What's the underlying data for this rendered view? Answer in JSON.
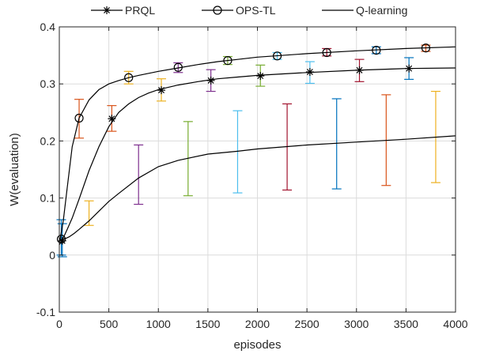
{
  "chart_data": {
    "type": "line",
    "xlabel": "episodes",
    "ylabel": "W(evaluation)",
    "xlim": [
      0,
      4000
    ],
    "ylim": [
      -0.1,
      0.4
    ],
    "xticks": [
      0,
      500,
      1000,
      1500,
      2000,
      2500,
      3000,
      3500,
      4000
    ],
    "yticks": [
      -0.1,
      0,
      0.1,
      0.2,
      0.3,
      0.4
    ],
    "xtick_labels": [
      "0",
      "500",
      "1000",
      "1500",
      "2000",
      "2500",
      "3000",
      "3500",
      "4000"
    ],
    "ytick_labels": [
      "-0.1",
      "0",
      "0.1",
      "0.2",
      "0.3",
      "0.4"
    ],
    "grid": true,
    "legend_position": "top",
    "series": [
      {
        "name": "PRQL",
        "marker": "asterisk",
        "color": "#000000",
        "curve": {
          "x": [
            0,
            40,
            80,
            130,
            200,
            300,
            400,
            500,
            600,
            700,
            800,
            900,
            1000,
            1200,
            1400,
            1600,
            1800,
            2000,
            2500,
            3000,
            3500,
            4000
          ],
          "y": [
            0.018,
            0.03,
            0.045,
            0.065,
            0.098,
            0.148,
            0.19,
            0.225,
            0.25,
            0.265,
            0.276,
            0.284,
            0.29,
            0.298,
            0.304,
            0.309,
            0.312,
            0.315,
            0.32,
            0.324,
            0.327,
            0.328
          ]
        },
        "markers": {
          "x": [
            30,
            530,
            1030,
            1530,
            2030,
            2530,
            3030,
            3530
          ],
          "y": [
            0.025,
            0.239,
            0.289,
            0.306,
            0.314,
            0.321,
            0.324,
            0.327
          ]
        },
        "errorbars": [
          {
            "x": 30,
            "low": -0.003,
            "high": 0.055,
            "color": "#0072BD"
          },
          {
            "x": 530,
            "low": 0.217,
            "high": 0.262,
            "color": "#D95319"
          },
          {
            "x": 1030,
            "low": 0.27,
            "high": 0.309,
            "color": "#EDB120"
          },
          {
            "x": 1530,
            "low": 0.287,
            "high": 0.325,
            "color": "#7E2F8E"
          },
          {
            "x": 2030,
            "low": 0.296,
            "high": 0.333,
            "color": "#77AC30"
          },
          {
            "x": 2530,
            "low": 0.301,
            "high": 0.339,
            "color": "#4DBEEE"
          },
          {
            "x": 3030,
            "low": 0.304,
            "high": 0.343,
            "color": "#A2142F"
          },
          {
            "x": 3530,
            "low": 0.308,
            "high": 0.346,
            "color": "#0072BD"
          }
        ]
      },
      {
        "name": "OPS-TL",
        "marker": "circle",
        "color": "#000000",
        "curve": {
          "x": [
            0,
            40,
            80,
            130,
            200,
            300,
            400,
            500,
            600,
            700,
            800,
            1000,
            1200,
            1400,
            1600,
            1800,
            2000,
            2500,
            3000,
            3500,
            4000
          ],
          "y": [
            0.02,
            0.06,
            0.118,
            0.19,
            0.24,
            0.272,
            0.29,
            0.3,
            0.306,
            0.311,
            0.315,
            0.322,
            0.328,
            0.334,
            0.339,
            0.343,
            0.347,
            0.353,
            0.358,
            0.362,
            0.365
          ]
        },
        "markers": {
          "x": [
            20,
            200,
            700,
            1200,
            1700,
            2200,
            2700,
            3200,
            3700
          ],
          "y": [
            0.028,
            0.24,
            0.311,
            0.329,
            0.341,
            0.349,
            0.355,
            0.359,
            0.363
          ]
        },
        "errorbars": [
          {
            "x": 20,
            "low": 0.0,
            "high": 0.062,
            "color": "#0072BD"
          },
          {
            "x": 200,
            "low": 0.205,
            "high": 0.273,
            "color": "#D95319"
          },
          {
            "x": 700,
            "low": 0.3,
            "high": 0.322,
            "color": "#EDB120"
          },
          {
            "x": 1200,
            "low": 0.32,
            "high": 0.337,
            "color": "#7E2F8E"
          },
          {
            "x": 1700,
            "low": 0.334,
            "high": 0.348,
            "color": "#77AC30"
          },
          {
            "x": 2200,
            "low": 0.343,
            "high": 0.355,
            "color": "#4DBEEE"
          },
          {
            "x": 2700,
            "low": 0.349,
            "high": 0.362,
            "color": "#A2142F"
          },
          {
            "x": 3200,
            "low": 0.353,
            "high": 0.365,
            "color": "#0072BD"
          },
          {
            "x": 3700,
            "low": 0.357,
            "high": 0.368,
            "color": "#D95319"
          }
        ]
      },
      {
        "name": "Q-learning",
        "marker": "none",
        "color": "#000000",
        "curve": {
          "x": [
            0,
            50,
            100,
            150,
            200,
            300,
            400,
            500,
            600,
            800,
            1000,
            1200,
            1500,
            1800,
            2000,
            2500,
            3000,
            3500,
            4000
          ],
          "y": [
            0.025,
            0.028,
            0.032,
            0.038,
            0.045,
            0.06,
            0.077,
            0.094,
            0.108,
            0.135,
            0.155,
            0.166,
            0.177,
            0.182,
            0.186,
            0.193,
            0.198,
            0.203,
            0.209
          ]
        },
        "markers": {
          "x": [],
          "y": []
        },
        "errorbars": [
          {
            "x": 300,
            "low": 0.052,
            "high": 0.095,
            "color": "#EDB120"
          },
          {
            "x": 800,
            "low": 0.089,
            "high": 0.193,
            "color": "#7E2F8E"
          },
          {
            "x": 1300,
            "low": 0.104,
            "high": 0.234,
            "color": "#77AC30"
          },
          {
            "x": 1800,
            "low": 0.109,
            "high": 0.253,
            "color": "#4DBEEE"
          },
          {
            "x": 2300,
            "low": 0.114,
            "high": 0.265,
            "color": "#A2142F"
          },
          {
            "x": 2800,
            "low": 0.116,
            "high": 0.274,
            "color": "#0072BD"
          },
          {
            "x": 3300,
            "low": 0.122,
            "high": 0.281,
            "color": "#D95319"
          },
          {
            "x": 3800,
            "low": 0.127,
            "high": 0.287,
            "color": "#EDB120"
          }
        ]
      }
    ]
  }
}
